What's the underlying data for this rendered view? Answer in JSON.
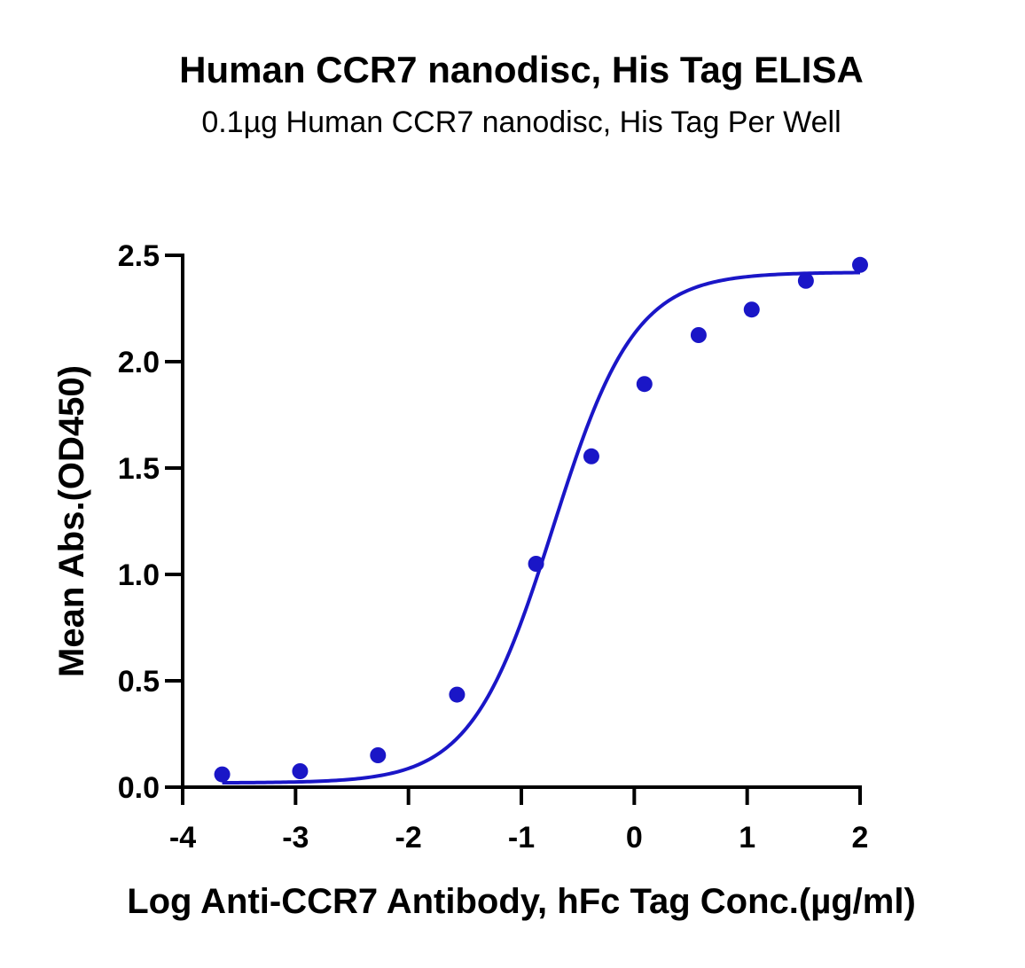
{
  "chart_data": {
    "type": "scatter",
    "title": "Human CCR7 nanodisc, His Tag ELISA",
    "subtitle": "0.1µg Human CCR7 nanodisc, His Tag Per Well",
    "xlabel": "Log Anti-CCR7 Antibody, hFc Tag Conc.(µg/ml)",
    "ylabel": "Mean Abs.(OD450)",
    "xlim": [
      -4,
      2
    ],
    "ylim": [
      0,
      2.5
    ],
    "x_ticks": [
      "-4",
      "-3",
      "-2",
      "-1",
      "0",
      "1",
      "2"
    ],
    "y_ticks": [
      "0.0",
      "0.5",
      "1.0",
      "1.5",
      "2.0",
      "2.5"
    ],
    "x_tick_values": [
      -4,
      -3,
      -2,
      -1,
      0,
      1,
      2
    ],
    "y_tick_values": [
      0,
      0.5,
      1.0,
      1.5,
      2.0,
      2.5
    ],
    "grid": false,
    "series": [
      {
        "x": [
          -3.65,
          -2.96,
          -2.27,
          -1.57,
          -0.87,
          -0.38,
          0.09,
          0.57,
          1.04,
          1.52,
          2.0
        ],
        "y": [
          0.06,
          0.075,
          0.15,
          0.435,
          1.05,
          1.555,
          1.895,
          2.125,
          2.245,
          2.38,
          2.455
        ],
        "fit": "4-parameter logistic",
        "color": "#1a16c7"
      }
    ],
    "fit_curve": {
      "bottom": 0.02,
      "top": 2.42,
      "logEC50": -0.72,
      "hill": 1.2,
      "x_range": [
        -3.65,
        2.0
      ]
    }
  }
}
